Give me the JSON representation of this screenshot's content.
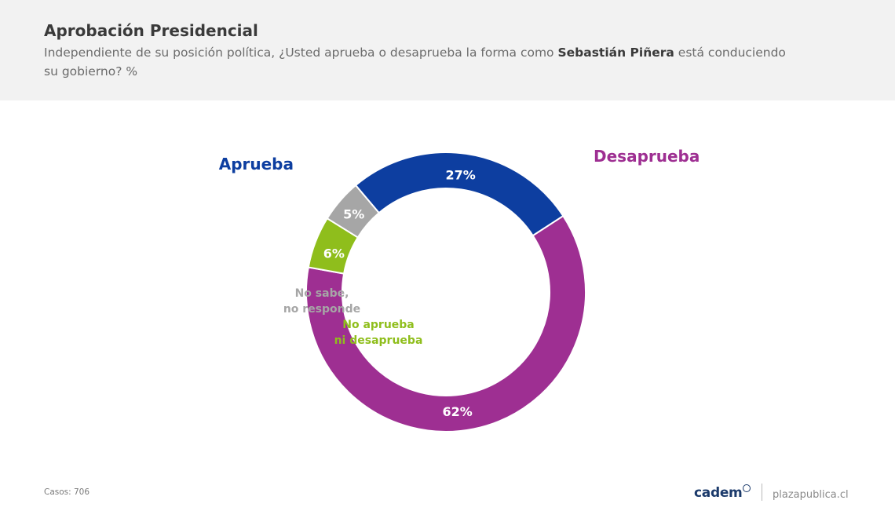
{
  "header": {
    "title": "Aprobación Presidencial",
    "question_part1": "Independiente de su posición política, ¿Usted aprueba o desaprueba la forma como ",
    "question_name": "Sebastián Piñera",
    "question_part2": " está conduciendo su gobierno? %"
  },
  "chart_data": {
    "type": "pie",
    "donut": true,
    "categories": [
      "Desaprueba",
      "No aprueba ni desaprueba",
      "No sabe, no responde",
      "Aprueba"
    ],
    "values": [
      62,
      6,
      5,
      27
    ],
    "value_labels": [
      "62%",
      "6%",
      "5%",
      "27%"
    ],
    "labels": [
      "Desaprueba",
      "No aprueba\nni desaprueba",
      "No sabe,\nno responde",
      "Aprueba"
    ],
    "colors": [
      "#9e2f92",
      "#8fbe1c",
      "#a6a6a6",
      "#0d3ea0"
    ],
    "label_colors": [
      "#9e2f92",
      "#8fbe1c",
      "#a6a6a6",
      "#0d3ea0"
    ],
    "start_angle_deg": -33,
    "direction": "clockwise"
  },
  "footer": {
    "cases": "Casos: 706",
    "brand": "cadem",
    "site": "plazapublica.cl"
  }
}
